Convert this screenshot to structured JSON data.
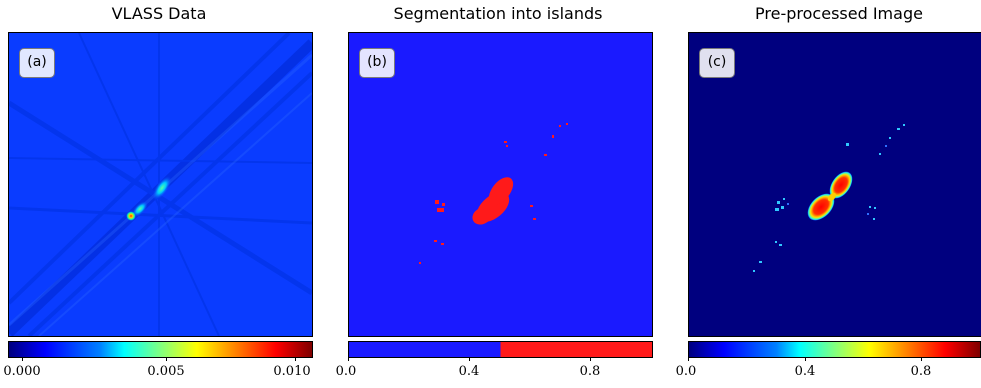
{
  "panels": [
    {
      "title": "VLASS Data",
      "tag": "(a)",
      "colorbar": {
        "ticks": [
          "0.000",
          "0.005",
          "0.010"
        ],
        "range": [
          0,
          0.0105
        ],
        "colormap": "jet"
      }
    },
    {
      "title": "Segmentation into islands",
      "tag": "(b)",
      "colorbar": {
        "ticks": [
          "0.0",
          "0.4",
          "0.8"
        ],
        "range": [
          0,
          1
        ],
        "colormap": "binary blue-red",
        "colors": [
          "#1a1aff",
          "#ff1a1a"
        ]
      }
    },
    {
      "title": "Pre-processed Image",
      "tag": "(c)",
      "colorbar": {
        "ticks": [
          "0.0",
          "0.4",
          "0.8"
        ],
        "range": [
          0,
          1
        ],
        "colormap": "jet"
      }
    }
  ],
  "colors": {
    "jet_bg_a": "#0a3cff",
    "seg_bg": "#1a1aff",
    "seg_fg": "#ff1a1a",
    "jet_bg_c": "#00007f"
  }
}
